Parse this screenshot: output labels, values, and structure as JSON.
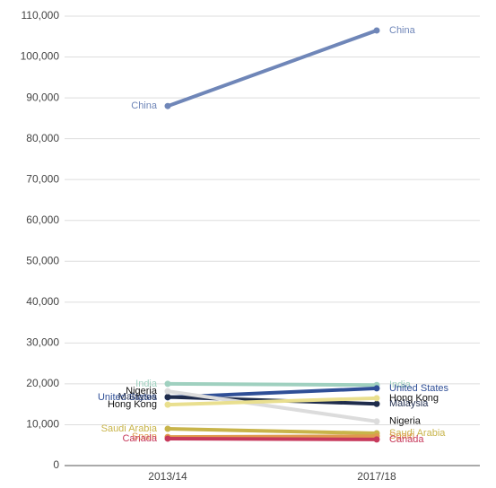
{
  "chart_data": {
    "type": "slope",
    "categories": [
      "2013/14",
      "2017/18"
    ],
    "ylim": [
      0,
      110000
    ],
    "yticks": [
      {
        "value": 0,
        "label": "0"
      },
      {
        "value": 10000,
        "label": "10,000"
      },
      {
        "value": 20000,
        "label": "20,000"
      },
      {
        "value": 30000,
        "label": "30,000"
      },
      {
        "value": 40000,
        "label": "40,000"
      },
      {
        "value": 50000,
        "label": "50,000"
      },
      {
        "value": 60000,
        "label": "60,000"
      },
      {
        "value": 70000,
        "label": "70,000"
      },
      {
        "value": 80000,
        "label": "80,000"
      },
      {
        "value": 90000,
        "label": "90,000"
      },
      {
        "value": 100000,
        "label": "100,000"
      },
      {
        "value": 110000,
        "label": "110,000"
      }
    ],
    "grid": true,
    "series": [
      {
        "name": "China",
        "color": "#6f86b8",
        "label_color": "#6f86b8",
        "values": [
          88000,
          106500
        ]
      },
      {
        "name": "India",
        "color": "#9fd0bf",
        "label_color": "#9fd0bf",
        "values": [
          20000,
          19700
        ]
      },
      {
        "name": "United States",
        "color": "#2f4f97",
        "label_color": "#2f4f97",
        "values": [
          16700,
          18900
        ]
      },
      {
        "name": "Malaysia",
        "color": "#1f2c4c",
        "label_color": "#1f2c4c",
        "values": [
          16800,
          15100
        ]
      },
      {
        "name": "Nigeria",
        "color": "#dcdcdc",
        "label_color": "#111111",
        "values": [
          18200,
          10800
        ]
      },
      {
        "name": "Hong Kong",
        "color": "#e9df8f",
        "label_color": "#111111",
        "values": [
          14900,
          16500
        ]
      },
      {
        "name": "Saudi Arabia",
        "color": "#c8b44a",
        "label_color": "#c8b44a",
        "values": [
          9000,
          7900
        ]
      },
      {
        "name": "Spain",
        "color": "#df9a4e",
        "label_color": "#df9a4e",
        "values": [
          7000,
          7200
        ]
      },
      {
        "name": "Canada",
        "color": "#c73a5c",
        "label_color": "#c73a5c",
        "values": [
          6600,
          6400
        ]
      }
    ]
  }
}
